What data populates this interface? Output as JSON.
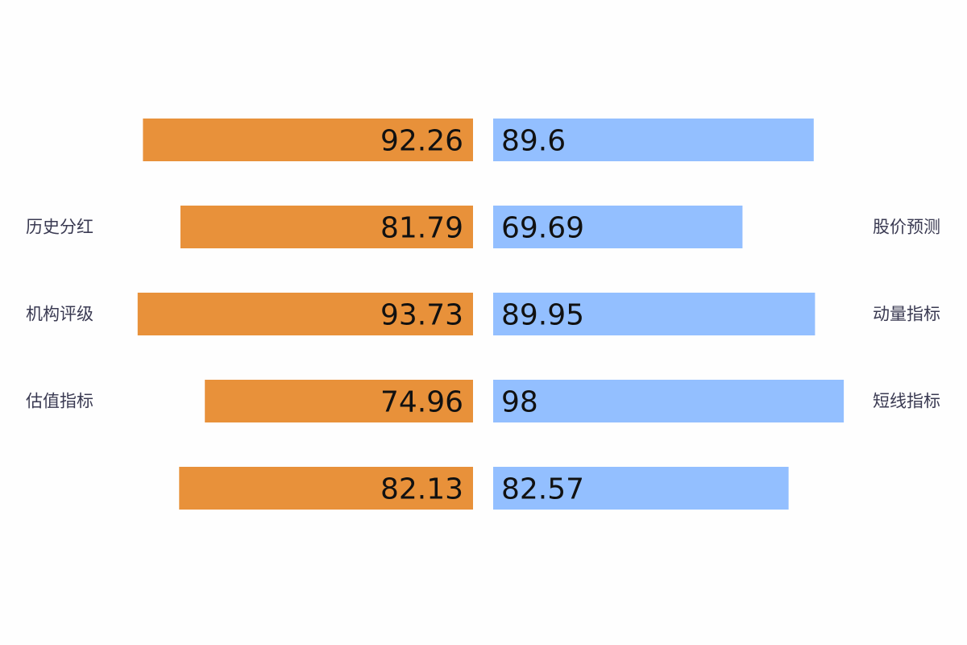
{
  "chart_data": {
    "type": "bar",
    "layout": "diverging-horizontal",
    "rows": [
      {
        "left_label": "",
        "right_label": "",
        "left": 92.26,
        "right": 89.6
      },
      {
        "left_label": "历史分红",
        "right_label": "股价预测",
        "left": 81.79,
        "right": 69.69
      },
      {
        "left_label": "机构评级",
        "right_label": "动量指标",
        "left": 93.73,
        "right": 89.95
      },
      {
        "left_label": "估值指标",
        "right_label": "短线指标",
        "left": 74.96,
        "right": 98
      },
      {
        "left_label": "",
        "right_label": "",
        "left": 82.13,
        "right": 82.57
      }
    ],
    "series": [
      {
        "side": "left",
        "values": [
          92.26,
          81.79,
          93.73,
          74.96,
          82.13
        ]
      },
      {
        "side": "right",
        "values": [
          89.6,
          69.69,
          89.95,
          98,
          82.57
        ]
      }
    ],
    "data_labels": {
      "left": [
        "92.26",
        "81.79",
        "93.73",
        "74.96",
        "82.13"
      ],
      "right": [
        "89.6",
        "69.69",
        "89.95",
        "98",
        "82.57"
      ]
    },
    "xlim": [
      0,
      100
    ],
    "grid": false,
    "legend": "none"
  },
  "colors": {
    "left": "#e8913a",
    "right": "#93bfff",
    "background": "#fefefe"
  }
}
